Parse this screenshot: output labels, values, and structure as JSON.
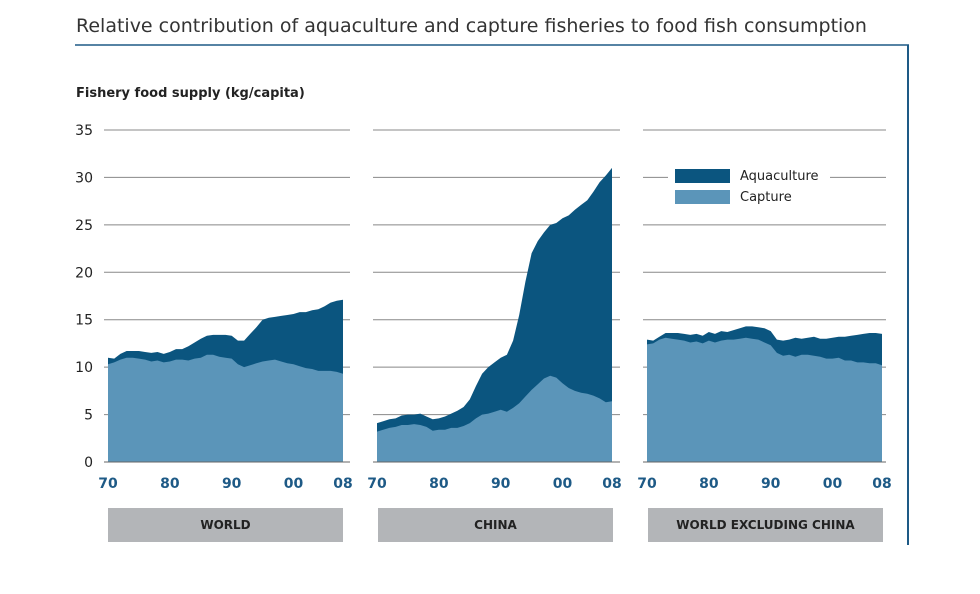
{
  "title": "Relative contribution of aquaculture and capture fisheries to food fish consumption",
  "colors": {
    "aquaculture": "#0b557f",
    "capture": "#5b95b9",
    "axis_label": "#1e5a86",
    "panel_box": "#b3b5b8"
  },
  "chart_data": [
    {
      "type": "area",
      "stacked": true,
      "panel": "WORLD",
      "ylabel": "Fishery food supply (kg/capita)",
      "ylim": [
        0,
        35
      ],
      "yticks": [
        "0",
        "5",
        "10",
        "15",
        "20",
        "25",
        "30",
        "35"
      ],
      "xlim": [
        1970,
        2008
      ],
      "xtick_labels": [
        "70",
        "80",
        "90",
        "00",
        "08"
      ],
      "grid": true,
      "x": [
        1970,
        1971,
        1972,
        1973,
        1974,
        1975,
        1976,
        1977,
        1978,
        1979,
        1980,
        1981,
        1982,
        1983,
        1984,
        1985,
        1986,
        1987,
        1988,
        1989,
        1990,
        1991,
        1992,
        1993,
        1994,
        1995,
        1996,
        1997,
        1998,
        1999,
        2000,
        2001,
        2002,
        2003,
        2004,
        2005,
        2006,
        2007,
        2008
      ],
      "series": [
        {
          "name": "Capture",
          "values": [
            10.3,
            10.5,
            10.8,
            11.0,
            11.0,
            10.9,
            10.8,
            10.6,
            10.7,
            10.5,
            10.6,
            10.8,
            10.8,
            10.7,
            10.9,
            11.0,
            11.3,
            11.3,
            11.1,
            11.0,
            10.9,
            10.3,
            10.0,
            10.2,
            10.4,
            10.6,
            10.7,
            10.8,
            10.6,
            10.4,
            10.3,
            10.1,
            9.9,
            9.8,
            9.6,
            9.6,
            9.6,
            9.5,
            9.3
          ]
        },
        {
          "name": "Aquaculture",
          "values": [
            0.7,
            0.4,
            0.6,
            0.7,
            0.7,
            0.8,
            0.8,
            0.9,
            0.9,
            0.9,
            1.0,
            1.1,
            1.1,
            1.5,
            1.7,
            2.0,
            2.0,
            2.1,
            2.3,
            2.4,
            2.4,
            2.5,
            2.8,
            3.3,
            3.8,
            4.4,
            4.5,
            4.5,
            4.8,
            5.1,
            5.3,
            5.7,
            5.9,
            6.2,
            6.5,
            6.8,
            7.2,
            7.5,
            7.8
          ]
        }
      ]
    },
    {
      "type": "area",
      "stacked": true,
      "panel": "CHINA",
      "ylim": [
        0,
        35
      ],
      "xlim": [
        1970,
        2008
      ],
      "xtick_labels": [
        "70",
        "80",
        "90",
        "00",
        "08"
      ],
      "grid": true,
      "x": [
        1970,
        1971,
        1972,
        1973,
        1974,
        1975,
        1976,
        1977,
        1978,
        1979,
        1980,
        1981,
        1982,
        1983,
        1984,
        1985,
        1986,
        1987,
        1988,
        1989,
        1990,
        1991,
        1992,
        1993,
        1994,
        1995,
        1996,
        1997,
        1998,
        1999,
        2000,
        2001,
        2002,
        2003,
        2004,
        2005,
        2006,
        2007,
        2008
      ],
      "series": [
        {
          "name": "Capture",
          "values": [
            3.2,
            3.4,
            3.6,
            3.7,
            3.9,
            3.9,
            4.0,
            3.9,
            3.7,
            3.3,
            3.4,
            3.4,
            3.6,
            3.6,
            3.8,
            4.1,
            4.6,
            5.0,
            5.1,
            5.3,
            5.5,
            5.3,
            5.7,
            6.2,
            6.9,
            7.6,
            8.2,
            8.8,
            9.1,
            8.9,
            8.3,
            7.8,
            7.5,
            7.3,
            7.2,
            7.0,
            6.7,
            6.3,
            6.4
          ]
        },
        {
          "name": "Aquaculture",
          "values": [
            0.9,
            0.9,
            0.9,
            0.9,
            1.0,
            1.1,
            1.0,
            1.2,
            1.1,
            1.2,
            1.2,
            1.4,
            1.5,
            1.8,
            2.0,
            2.5,
            3.4,
            4.3,
            4.9,
            5.2,
            5.5,
            6.0,
            7.1,
            9.3,
            12.1,
            14.4,
            15.1,
            15.4,
            15.9,
            16.3,
            17.4,
            18.2,
            19.1,
            19.8,
            20.4,
            21.5,
            22.8,
            23.9,
            24.6
          ]
        }
      ]
    },
    {
      "type": "area",
      "stacked": true,
      "panel": "WORLD EXCLUDING CHINA",
      "ylim": [
        0,
        35
      ],
      "xlim": [
        1970,
        2008
      ],
      "xtick_labels": [
        "70",
        "80",
        "90",
        "00",
        "08"
      ],
      "grid": true,
      "legend": {
        "placement": "top-left",
        "entries": [
          "Aquaculture",
          "Capture"
        ]
      },
      "x": [
        1970,
        1971,
        1972,
        1973,
        1974,
        1975,
        1976,
        1977,
        1978,
        1979,
        1980,
        1981,
        1982,
        1983,
        1984,
        1985,
        1986,
        1987,
        1988,
        1989,
        1990,
        1991,
        1992,
        1993,
        1994,
        1995,
        1996,
        1997,
        1998,
        1999,
        2000,
        2001,
        2002,
        2003,
        2004,
        2005,
        2006,
        2007,
        2008
      ],
      "series": [
        {
          "name": "Capture",
          "values": [
            12.4,
            12.5,
            12.9,
            13.1,
            13.0,
            12.9,
            12.8,
            12.6,
            12.7,
            12.5,
            12.8,
            12.6,
            12.8,
            12.9,
            12.9,
            13.0,
            13.1,
            13.0,
            12.9,
            12.6,
            12.3,
            11.5,
            11.2,
            11.3,
            11.1,
            11.3,
            11.3,
            11.2,
            11.1,
            10.9,
            10.9,
            11.0,
            10.7,
            10.7,
            10.5,
            10.5,
            10.4,
            10.4,
            10.2
          ]
        },
        {
          "name": "Aquaculture",
          "values": [
            0.5,
            0.3,
            0.3,
            0.5,
            0.6,
            0.7,
            0.7,
            0.8,
            0.8,
            0.8,
            0.9,
            0.9,
            1.0,
            0.8,
            1.0,
            1.1,
            1.2,
            1.3,
            1.3,
            1.5,
            1.5,
            1.4,
            1.6,
            1.6,
            2.0,
            1.7,
            1.8,
            2.0,
            1.9,
            2.1,
            2.2,
            2.2,
            2.5,
            2.6,
            2.9,
            3.0,
            3.2,
            3.2,
            3.3
          ]
        }
      ]
    }
  ]
}
